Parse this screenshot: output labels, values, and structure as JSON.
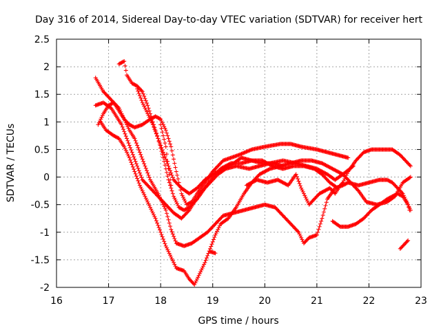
{
  "chart_data": {
    "type": "scatter",
    "title": "Day 316 of 2014, Sidereal Day-to-day VTEC variation (SDTVAR) for receiver hert",
    "xlabel": "GPS time / hours",
    "ylabel": "SDTVAR / TECUs",
    "xlim": [
      16,
      23
    ],
    "ylim": [
      -2,
      2.5
    ],
    "x_ticks": [
      "16",
      "17",
      "18",
      "19",
      "20",
      "21",
      "22",
      "23"
    ],
    "y_ticks": [
      "-2",
      "-1.5",
      "-1",
      "-0.5",
      "0",
      "0.5",
      "1",
      "1.5",
      "2",
      "2.5"
    ],
    "grid": true,
    "marker": "+",
    "color": "#ff0000",
    "series": [
      {
        "name": "track-1",
        "points": [
          [
            16.75,
            1.8
          ],
          [
            16.9,
            1.55
          ],
          [
            17.0,
            1.45
          ],
          [
            17.1,
            1.35
          ],
          [
            17.2,
            1.2
          ],
          [
            17.3,
            1.05
          ],
          [
            17.4,
            0.95
          ],
          [
            17.5,
            0.9
          ],
          [
            17.65,
            0.95
          ],
          [
            17.8,
            1.05
          ],
          [
            17.9,
            1.1
          ],
          [
            18.0,
            1.05
          ],
          [
            18.1,
            0.85
          ],
          [
            18.2,
            0.55
          ],
          [
            18.3,
            0.1
          ],
          [
            18.4,
            -0.3
          ],
          [
            18.5,
            -0.5
          ],
          [
            18.6,
            -0.45
          ],
          [
            18.7,
            -0.3
          ],
          [
            18.85,
            -0.1
          ],
          [
            19.0,
            0.1
          ],
          [
            19.2,
            0.3
          ],
          [
            19.5,
            0.4
          ],
          [
            19.75,
            0.5
          ],
          [
            20.0,
            0.55
          ],
          [
            20.3,
            0.6
          ],
          [
            20.5,
            0.6
          ],
          [
            20.7,
            0.55
          ],
          [
            21.0,
            0.5
          ],
          [
            21.2,
            0.45
          ],
          [
            21.4,
            0.4
          ],
          [
            21.6,
            0.35
          ]
        ]
      },
      {
        "name": "track-2",
        "points": [
          [
            16.75,
            1.3
          ],
          [
            16.9,
            1.35
          ],
          [
            17.05,
            1.25
          ],
          [
            17.15,
            1.1
          ],
          [
            17.25,
            0.95
          ],
          [
            17.35,
            0.7
          ],
          [
            17.45,
            0.45
          ],
          [
            17.55,
            0.2
          ],
          [
            17.65,
            -0.05
          ],
          [
            17.8,
            -0.2
          ],
          [
            17.95,
            -0.35
          ],
          [
            18.1,
            -0.5
          ],
          [
            18.25,
            -0.65
          ],
          [
            18.4,
            -0.75
          ],
          [
            18.55,
            -0.6
          ],
          [
            18.75,
            -0.3
          ],
          [
            18.95,
            -0.1
          ],
          [
            19.1,
            0.05
          ],
          [
            19.25,
            0.15
          ],
          [
            19.45,
            0.2
          ],
          [
            19.7,
            0.15
          ],
          [
            19.9,
            0.2
          ],
          [
            20.1,
            0.25
          ],
          [
            20.35,
            0.3
          ],
          [
            20.6,
            0.25
          ],
          [
            20.8,
            0.2
          ],
          [
            21.0,
            0.15
          ],
          [
            21.2,
            0.05
          ],
          [
            21.35,
            -0.05
          ],
          [
            21.5,
            0.05
          ],
          [
            21.7,
            0.2
          ]
        ]
      },
      {
        "name": "track-3",
        "points": [
          [
            16.8,
            0.95
          ],
          [
            16.9,
            1.15
          ],
          [
            17.0,
            1.3
          ],
          [
            17.1,
            1.35
          ],
          [
            17.2,
            1.25
          ],
          [
            17.3,
            1.05
          ],
          [
            17.4,
            0.85
          ],
          [
            17.5,
            0.7
          ],
          [
            17.6,
            0.45
          ],
          [
            17.7,
            0.2
          ],
          [
            17.8,
            -0.05
          ],
          [
            17.95,
            -0.3
          ],
          [
            18.1,
            -0.6
          ],
          [
            18.2,
            -0.95
          ],
          [
            18.3,
            -1.2
          ],
          [
            18.45,
            -1.25
          ],
          [
            18.6,
            -1.2
          ],
          [
            18.75,
            -1.1
          ],
          [
            18.9,
            -1.0
          ],
          [
            19.05,
            -0.85
          ],
          [
            19.2,
            -0.7
          ],
          [
            19.4,
            -0.65
          ],
          [
            19.6,
            -0.6
          ],
          [
            19.8,
            -0.55
          ],
          [
            20.0,
            -0.5
          ],
          [
            20.2,
            -0.55
          ],
          [
            20.35,
            -0.7
          ],
          [
            20.5,
            -0.85
          ],
          [
            20.65,
            -1.0
          ],
          [
            20.75,
            -1.2
          ],
          [
            20.85,
            -1.1
          ],
          [
            21.0,
            -1.05
          ],
          [
            21.1,
            -0.75
          ],
          [
            21.2,
            -0.4
          ],
          [
            21.35,
            -0.2
          ],
          [
            21.5,
            -0.15
          ],
          [
            21.6,
            -0.1
          ],
          [
            21.8,
            -0.15
          ],
          [
            22.0,
            -0.1
          ],
          [
            22.2,
            -0.05
          ],
          [
            22.35,
            -0.05
          ],
          [
            22.45,
            -0.1
          ],
          [
            22.55,
            -0.2
          ],
          [
            22.65,
            -0.3
          ],
          [
            22.75,
            -0.5
          ],
          [
            22.8,
            -0.6
          ]
        ]
      },
      {
        "name": "track-4",
        "points": [
          [
            16.85,
            1.0
          ],
          [
            16.95,
            0.85
          ],
          [
            17.1,
            0.75
          ],
          [
            17.2,
            0.7
          ],
          [
            17.3,
            0.55
          ],
          [
            17.4,
            0.35
          ],
          [
            17.5,
            0.1
          ],
          [
            17.6,
            -0.15
          ],
          [
            17.7,
            -0.35
          ],
          [
            17.8,
            -0.55
          ],
          [
            17.9,
            -0.75
          ],
          [
            18.0,
            -1.0
          ],
          [
            18.1,
            -1.25
          ],
          [
            18.2,
            -1.45
          ],
          [
            18.3,
            -1.65
          ],
          [
            18.45,
            -1.7
          ],
          [
            18.55,
            -1.85
          ],
          [
            18.65,
            -1.95
          ],
          [
            18.75,
            -1.75
          ],
          [
            18.85,
            -1.55
          ],
          [
            18.95,
            -1.3
          ],
          [
            19.05,
            -1.05
          ],
          [
            19.15,
            -0.85
          ],
          [
            19.3,
            -0.75
          ],
          [
            19.45,
            -0.55
          ],
          [
            19.6,
            -0.3
          ],
          [
            19.75,
            -0.1
          ],
          [
            19.9,
            0.05
          ],
          [
            20.1,
            0.15
          ],
          [
            20.3,
            0.2
          ],
          [
            20.5,
            0.25
          ],
          [
            20.7,
            0.3
          ],
          [
            20.9,
            0.3
          ],
          [
            21.1,
            0.25
          ],
          [
            21.3,
            0.15
          ],
          [
            21.5,
            0.05
          ],
          [
            21.65,
            -0.1
          ],
          [
            21.8,
            -0.25
          ],
          [
            21.95,
            -0.45
          ],
          [
            22.15,
            -0.5
          ],
          [
            22.35,
            -0.45
          ],
          [
            22.5,
            -0.35
          ],
          [
            22.65,
            -0.1
          ],
          [
            22.8,
            0.0
          ]
        ]
      },
      {
        "name": "track-5",
        "points": [
          [
            17.2,
            2.05
          ],
          [
            17.3,
            2.1
          ],
          [
            17.35,
            1.85
          ],
          [
            17.45,
            1.7
          ],
          [
            17.55,
            1.65
          ],
          [
            17.65,
            1.55
          ],
          [
            17.75,
            1.3
          ],
          [
            17.85,
            1.0
          ],
          [
            17.95,
            0.7
          ],
          [
            18.05,
            0.45
          ],
          [
            18.15,
            0.2
          ],
          [
            18.25,
            -0.05
          ],
          [
            18.4,
            -0.2
          ],
          [
            18.55,
            -0.3
          ],
          [
            18.7,
            -0.2
          ],
          [
            18.85,
            -0.05
          ],
          [
            19.0,
            0.05
          ],
          [
            19.2,
            0.15
          ],
          [
            19.4,
            0.25
          ],
          [
            19.55,
            0.35
          ],
          [
            19.75,
            0.3
          ],
          [
            19.95,
            0.3
          ],
          [
            20.15,
            0.2
          ],
          [
            20.35,
            0.15
          ],
          [
            20.55,
            0.2
          ],
          [
            20.75,
            0.2
          ],
          [
            20.95,
            0.15
          ],
          [
            21.1,
            0.05
          ],
          [
            21.25,
            -0.1
          ],
          [
            21.4,
            -0.2
          ],
          [
            21.5,
            -0.1
          ],
          [
            21.6,
            0.1
          ],
          [
            21.75,
            0.3
          ],
          [
            21.9,
            0.45
          ],
          [
            22.05,
            0.5
          ],
          [
            22.25,
            0.5
          ],
          [
            22.45,
            0.5
          ],
          [
            22.6,
            0.4
          ],
          [
            22.7,
            0.3
          ],
          [
            22.8,
            0.2
          ]
        ]
      },
      {
        "name": "track-6",
        "points": [
          [
            17.55,
            1.6
          ],
          [
            17.65,
            1.35
          ],
          [
            17.75,
            1.15
          ],
          [
            17.85,
            0.95
          ],
          [
            17.95,
            0.7
          ],
          [
            18.05,
            0.35
          ],
          [
            18.15,
            -0.05
          ],
          [
            18.25,
            -0.35
          ],
          [
            18.35,
            -0.55
          ],
          [
            18.45,
            -0.6
          ],
          [
            18.55,
            -0.55
          ],
          [
            18.7,
            -0.4
          ],
          [
            18.85,
            -0.2
          ],
          [
            19.0,
            0.0
          ],
          [
            19.15,
            0.15
          ],
          [
            19.35,
            0.25
          ],
          [
            19.55,
            0.25
          ],
          [
            19.75,
            0.3
          ],
          [
            19.95,
            0.25
          ],
          [
            20.15,
            0.25
          ],
          [
            20.35,
            0.2
          ]
        ]
      },
      {
        "name": "track-7",
        "points": [
          [
            19.65,
            -0.15
          ],
          [
            19.85,
            -0.05
          ],
          [
            20.05,
            -0.1
          ],
          [
            20.25,
            -0.05
          ],
          [
            20.45,
            -0.15
          ],
          [
            20.6,
            0.05
          ],
          [
            20.7,
            -0.2
          ],
          [
            20.85,
            -0.5
          ],
          [
            20.95,
            -0.4
          ],
          [
            21.05,
            -0.3
          ],
          [
            21.15,
            -0.25
          ],
          [
            21.25,
            -0.2
          ],
          [
            21.35,
            -0.3
          ],
          [
            21.45,
            -0.15
          ]
        ]
      },
      {
        "name": "track-8",
        "points": [
          [
            21.3,
            -0.8
          ],
          [
            21.45,
            -0.9
          ],
          [
            21.6,
            -0.9
          ],
          [
            21.75,
            -0.85
          ],
          [
            21.9,
            -0.75
          ],
          [
            22.05,
            -0.6
          ],
          [
            22.2,
            -0.5
          ],
          [
            22.35,
            -0.4
          ],
          [
            22.45,
            -0.35
          ],
          [
            22.55,
            -0.3
          ],
          [
            22.65,
            -0.35
          ],
          [
            22.75,
            -0.5
          ],
          [
            22.78,
            -0.6
          ]
        ]
      },
      {
        "name": "track-9",
        "points": [
          [
            22.6,
            -1.3
          ],
          [
            22.65,
            -1.25
          ],
          [
            22.7,
            -1.2
          ],
          [
            22.75,
            -1.15
          ]
        ]
      },
      {
        "name": "track-10",
        "points": [
          [
            18.95,
            -1.35
          ],
          [
            19.05,
            -1.38
          ]
        ]
      },
      {
        "name": "track-11",
        "points": [
          [
            18.0,
            0.95
          ],
          [
            18.1,
            0.55
          ],
          [
            18.15,
            0.15
          ],
          [
            18.2,
            -0.15
          ]
        ]
      }
    ]
  }
}
